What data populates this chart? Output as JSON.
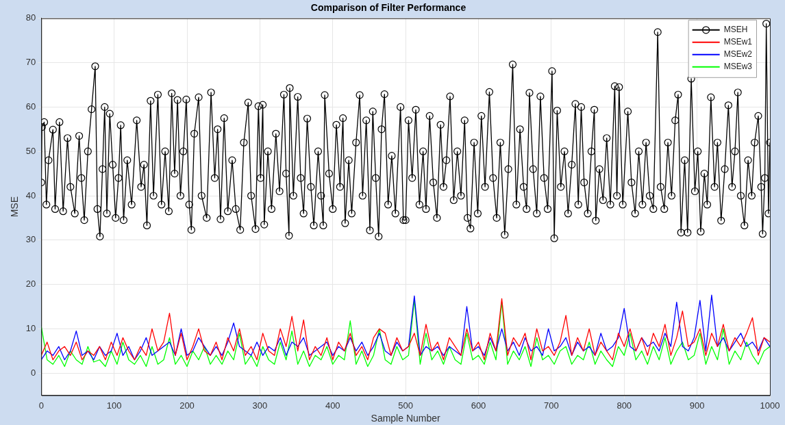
{
  "chart_data": {
    "type": "line",
    "title": "Comparison of Filter Performance",
    "xlabel": "Sample Number",
    "ylabel": "MSE",
    "xlim": [
      0,
      1000
    ],
    "ylim": [
      -5,
      80
    ],
    "xticks": [
      0,
      100,
      200,
      300,
      400,
      500,
      600,
      700,
      800,
      900,
      1000
    ],
    "yticks": [
      0,
      10,
      20,
      30,
      40,
      50,
      60,
      70,
      80
    ],
    "grid": true,
    "legend": "top right",
    "line_style": "solid",
    "series": [
      {
        "name": "MSEH",
        "color": "#000000",
        "marker": "circle",
        "x": [
          0,
          1,
          4,
          7,
          10,
          16,
          19,
          25,
          30,
          36,
          40,
          46,
          52,
          55,
          59,
          64,
          69,
          74,
          77,
          80.5,
          84,
          87,
          90,
          94,
          98,
          102,
          106,
          109,
          113,
          118,
          124,
          131,
          137,
          141,
          145,
          150,
          154,
          160,
          165,
          170,
          175,
          179,
          183,
          187,
          191,
          195,
          199,
          203,
          206,
          210,
          216,
          220,
          227,
          233,
          238,
          242,
          246,
          251,
          256,
          262,
          267,
          273,
          278,
          284,
          288,
          294,
          298,
          301,
          304,
          306,
          311,
          316,
          322,
          327,
          333,
          336,
          340,
          341,
          346,
          352,
          356,
          360,
          365,
          370,
          374,
          380,
          384,
          387,
          389,
          395,
          400,
          405,
          410,
          414,
          417,
          422,
          426,
          432,
          437,
          441,
          446,
          451,
          455,
          459,
          463,
          467,
          471,
          476,
          481,
          486,
          493,
          497,
          500,
          504,
          509,
          514,
          519,
          524,
          528,
          533,
          538,
          543,
          548,
          552,
          556,
          561,
          566,
          571,
          576,
          581,
          585,
          589,
          594,
          599,
          604,
          609,
          615,
          620,
          625,
          630,
          636,
          641,
          647,
          652,
          657,
          662,
          666,
          670,
          675,
          680,
          685,
          690,
          695,
          701,
          704,
          708,
          713,
          718,
          723,
          728,
          733,
          737,
          741,
          745,
          750,
          755,
          759,
          761,
          766,
          771,
          776,
          781,
          787,
          790,
          793,
          798,
          805,
          810,
          815,
          820,
          825,
          830,
          835,
          840,
          846,
          850,
          855,
          860,
          865,
          870,
          874,
          878,
          883,
          887,
          892,
          897,
          901,
          905,
          910,
          914,
          919,
          924,
          928,
          933,
          938,
          943,
          948,
          952,
          956,
          960,
          965,
          970,
          975,
          979,
          984,
          988,
          990,
          993,
          995,
          998,
          1000
        ],
        "values": [
          43,
          55.5,
          56.6,
          38,
          48,
          54.9,
          37,
          56.6,
          36.5,
          53,
          42,
          36,
          53.5,
          44,
          34.5,
          50,
          59.5,
          69.2,
          37,
          30.8,
          46,
          60,
          36,
          58.5,
          47,
          35,
          44,
          55.9,
          34.5,
          48,
          38,
          57,
          42,
          47,
          33.3,
          61.4,
          40,
          62.8,
          38,
          50,
          36.5,
          63.1,
          45,
          61.6,
          40,
          50,
          61.7,
          38,
          32.3,
          54,
          62.2,
          40,
          35,
          63.3,
          44,
          55,
          34.7,
          57.5,
          36.5,
          48,
          37,
          32.3,
          52,
          61,
          40,
          32.5,
          60.2,
          44,
          60.5,
          33.5,
          50,
          37,
          54,
          41,
          62.8,
          45,
          31,
          64.3,
          40,
          62.3,
          44,
          36,
          57.4,
          42,
          33.3,
          50,
          40,
          33.3,
          62.7,
          45,
          37,
          56,
          42,
          57.5,
          33.8,
          48,
          36,
          52,
          62.7,
          40,
          57,
          32.2,
          59,
          44,
          30.8,
          55,
          62.9,
          38,
          49,
          36,
          60,
          34.5,
          34.5,
          57,
          44,
          59.4,
          38,
          50,
          37,
          58,
          43,
          35,
          56,
          42,
          48,
          62.4,
          39,
          50,
          40,
          57,
          35,
          32.6,
          52,
          36,
          58,
          42,
          63.4,
          44,
          35,
          52,
          31.2,
          46,
          69.6,
          38,
          55,
          42,
          37,
          63.2,
          46,
          36,
          62.4,
          44,
          37,
          68.1,
          30.4,
          59.2,
          42,
          50,
          36,
          47,
          60.7,
          38,
          60,
          43,
          36,
          50,
          59.4,
          34.4,
          46,
          39,
          53,
          38,
          64.7,
          40,
          64.5,
          38,
          59,
          43,
          36,
          50,
          38,
          52,
          40,
          37,
          76.9,
          42,
          37,
          52,
          40,
          57,
          62.8,
          31.7,
          48,
          31.7,
          66.4,
          41,
          50,
          31.9,
          45,
          38,
          62.2,
          42,
          52,
          34.4,
          46,
          60.4,
          42,
          50,
          63.3,
          40,
          33.3,
          48,
          40,
          52,
          58,
          42,
          31.4,
          44,
          78.8,
          36,
          52
        ]
      },
      {
        "name": "MSEw1",
        "color": "#ff0000",
        "marker": "none",
        "x": [
          0,
          8,
          16,
          24,
          32,
          40,
          48,
          56,
          64,
          72,
          80,
          88,
          96,
          104,
          112,
          120,
          128,
          136,
          144,
          152,
          160,
          168,
          176,
          184,
          192,
          200,
          208,
          216,
          224,
          232,
          240,
          248,
          256,
          264,
          272,
          280,
          288,
          296,
          304,
          312,
          320,
          328,
          336,
          344,
          352,
          360,
          368,
          376,
          384,
          392,
          400,
          408,
          416,
          424,
          432,
          440,
          448,
          456,
          464,
          472,
          480,
          488,
          496,
          504,
          512,
          520,
          528,
          536,
          544,
          552,
          560,
          568,
          576,
          584,
          592,
          600,
          608,
          616,
          624,
          632,
          640,
          648,
          656,
          664,
          672,
          680,
          688,
          696,
          704,
          712,
          720,
          728,
          736,
          744,
          752,
          760,
          768,
          776,
          784,
          792,
          800,
          808,
          816,
          824,
          832,
          840,
          848,
          856,
          864,
          872,
          880,
          888,
          896,
          904,
          912,
          920,
          928,
          936,
          944,
          952,
          960,
          968,
          976,
          984,
          992,
          1000
        ],
        "values": [
          4,
          7,
          3,
          5,
          6,
          4,
          7,
          3,
          5,
          4,
          6,
          3,
          7,
          4,
          8,
          5,
          3,
          6,
          4,
          10,
          5,
          7,
          13.5,
          4,
          9,
          3,
          6,
          10,
          5,
          4,
          7,
          3,
          8,
          5,
          10,
          4,
          6,
          3,
          9,
          5,
          4,
          10,
          6,
          12.8,
          5,
          12,
          3,
          6,
          4,
          8,
          3,
          7,
          5,
          9,
          4,
          6,
          3,
          8,
          10,
          9,
          4,
          8,
          5,
          6,
          9,
          4,
          11,
          5,
          7,
          3,
          8,
          6,
          4,
          10,
          5,
          7,
          3,
          9,
          5,
          16.8,
          4,
          8,
          6,
          9,
          3,
          10,
          5,
          6,
          4,
          7,
          13,
          4,
          8,
          5,
          10,
          4,
          7,
          5,
          3,
          9,
          6,
          10,
          5,
          8,
          4,
          9,
          6,
          11,
          4,
          8,
          14,
          6,
          7,
          10,
          4,
          9,
          6,
          11,
          5,
          8,
          6,
          9,
          12.5,
          4,
          8,
          7
        ]
      },
      {
        "name": "MSEw2",
        "color": "#0000ff",
        "marker": "none",
        "x": [
          0,
          8,
          16,
          24,
          32,
          40,
          48,
          56,
          64,
          72,
          80,
          88,
          96,
          104,
          112,
          120,
          128,
          136,
          144,
          152,
          160,
          168,
          176,
          184,
          192,
          200,
          208,
          216,
          224,
          232,
          240,
          248,
          256,
          264,
          272,
          280,
          288,
          296,
          304,
          312,
          320,
          328,
          336,
          344,
          352,
          360,
          368,
          376,
          384,
          392,
          400,
          408,
          416,
          424,
          432,
          440,
          448,
          456,
          464,
          472,
          480,
          488,
          496,
          504,
          512,
          520,
          528,
          536,
          544,
          552,
          560,
          568,
          576,
          584,
          592,
          600,
          608,
          616,
          624,
          632,
          640,
          648,
          656,
          664,
          672,
          680,
          688,
          696,
          704,
          712,
          720,
          728,
          736,
          744,
          752,
          760,
          768,
          776,
          784,
          792,
          800,
          808,
          816,
          824,
          832,
          840,
          848,
          856,
          864,
          872,
          880,
          888,
          896,
          904,
          912,
          920,
          928,
          936,
          944,
          952,
          960,
          968,
          976,
          984,
          992,
          1000
        ],
        "values": [
          3,
          5,
          4,
          6,
          3,
          5,
          9.5,
          4,
          5,
          3,
          6,
          4,
          5,
          9,
          4,
          6,
          3,
          5,
          8,
          4,
          5,
          6,
          7,
          4,
          10,
          4,
          5,
          8,
          6,
          4,
          6,
          4,
          7,
          11.3,
          6,
          5,
          4,
          7,
          4,
          6,
          5,
          8,
          4,
          7,
          6,
          8,
          4,
          5,
          6,
          7,
          4,
          6,
          5,
          8,
          5,
          7,
          4,
          6,
          9,
          5,
          4,
          7,
          5,
          6,
          17.4,
          4,
          6,
          5,
          6,
          4,
          6,
          5,
          4,
          15,
          5,
          6,
          4,
          8,
          5,
          10,
          5,
          7,
          4,
          8,
          5,
          6,
          4,
          10,
          5,
          6,
          8,
          4,
          7,
          5,
          6,
          4,
          9,
          5,
          6,
          8,
          14.6,
          6,
          5,
          8,
          6,
          7,
          5,
          9,
          6,
          16,
          6,
          5,
          8,
          16.4,
          5,
          17.6,
          6,
          8,
          5,
          7,
          9,
          6,
          7,
          5,
          8,
          6
        ]
      },
      {
        "name": "MSEw3",
        "color": "#00ff00",
        "marker": "none",
        "x": [
          0,
          8,
          16,
          24,
          32,
          40,
          48,
          56,
          64,
          72,
          80,
          88,
          96,
          104,
          112,
          120,
          128,
          136,
          144,
          152,
          160,
          168,
          176,
          184,
          192,
          200,
          208,
          216,
          224,
          232,
          240,
          248,
          256,
          264,
          272,
          280,
          288,
          296,
          304,
          312,
          320,
          328,
          336,
          344,
          352,
          360,
          368,
          376,
          384,
          392,
          400,
          408,
          416,
          424,
          432,
          440,
          448,
          456,
          464,
          472,
          480,
          488,
          496,
          504,
          512,
          520,
          528,
          536,
          544,
          552,
          560,
          568,
          576,
          584,
          592,
          600,
          608,
          616,
          624,
          632,
          640,
          648,
          656,
          664,
          672,
          680,
          688,
          696,
          704,
          712,
          720,
          728,
          736,
          744,
          752,
          760,
          768,
          776,
          784,
          792,
          800,
          808,
          816,
          824,
          832,
          840,
          848,
          856,
          864,
          872,
          880,
          888,
          896,
          904,
          912,
          920,
          928,
          936,
          944,
          952,
          960,
          968,
          976,
          984,
          992,
          1000
        ],
        "values": [
          10.5,
          3,
          2,
          4,
          1.5,
          5,
          3,
          2,
          6,
          2.5,
          3,
          1.5,
          5,
          2,
          7,
          3,
          2,
          4,
          1.5,
          6,
          2,
          3,
          8,
          2,
          4,
          1.5,
          5,
          3,
          6,
          2,
          4,
          2,
          5,
          3,
          9,
          2,
          4,
          1.5,
          6,
          3,
          2,
          7,
          3,
          9.5,
          2,
          5,
          1.5,
          4,
          3,
          6,
          2,
          4,
          3,
          11.8,
          2,
          5,
          1.5,
          4,
          10,
          3,
          2,
          6,
          3,
          4,
          16.5,
          2,
          9,
          3,
          5,
          2,
          6,
          3,
          2,
          9,
          3,
          4,
          2,
          7,
          3,
          16,
          2,
          5,
          3,
          6,
          1.5,
          8,
          3,
          4,
          2,
          5,
          6,
          2,
          4,
          3,
          7,
          2,
          5,
          3,
          1.5,
          6,
          4,
          9,
          3,
          5,
          2,
          6,
          3,
          8,
          2,
          5,
          7,
          3,
          4,
          9,
          2,
          6,
          3,
          10,
          2,
          5,
          3,
          7,
          4,
          2,
          5,
          6
        ]
      }
    ]
  }
}
